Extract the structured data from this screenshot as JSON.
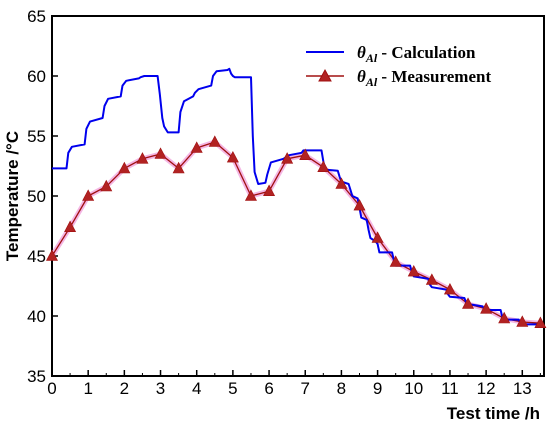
{
  "chart_data": {
    "type": "line",
    "xlabel": "Test time /h",
    "ylabel": "Temperature /°C",
    "xlim": [
      0,
      13.6
    ],
    "ylim": [
      35,
      65
    ],
    "xticks": [
      0,
      1,
      2,
      3,
      4,
      5,
      6,
      7,
      8,
      9,
      10,
      11,
      12,
      13
    ],
    "yticks": [
      35,
      40,
      45,
      50,
      55,
      60,
      65
    ],
    "grid": false,
    "legend_position": "top-right",
    "series": [
      {
        "name": "θ_Al - Calculation",
        "legend_symbol": "θ",
        "legend_subscript": "Al",
        "legend_suffix": " - Calculation",
        "color": "#0000ee",
        "marker": "none",
        "x": [
          0,
          0.4,
          0.45,
          0.55,
          0.9,
          0.95,
          1.05,
          1.4,
          1.45,
          1.55,
          1.9,
          1.95,
          2.05,
          2.4,
          2.45,
          2.55,
          2.92,
          2.98,
          3.05,
          3.1,
          3.2,
          3.5,
          3.55,
          3.65,
          3.9,
          3.95,
          4.05,
          4.4,
          4.45,
          4.55,
          4.85,
          4.9,
          4.95,
          5.0,
          5.05,
          5.5,
          5.55,
          5.6,
          5.7,
          5.9,
          5.95,
          6.05,
          6.4,
          6.45,
          6.55,
          6.9,
          6.95,
          7.0,
          7.45,
          7.5,
          7.55,
          7.9,
          7.95,
          8.0,
          8.2,
          8.25,
          8.3,
          8.45,
          8.5,
          8.55,
          8.7,
          8.75,
          8.8,
          8.95,
          9.0,
          9.05,
          9.4,
          9.45,
          9.5,
          9.9,
          9.95,
          10.0,
          10.4,
          10.45,
          10.5,
          10.9,
          10.95,
          11.0,
          11.4,
          11.45,
          11.5,
          11.9,
          11.95,
          12.0,
          12.4,
          12.45,
          12.5,
          12.9,
          12.95,
          13.0,
          13.4,
          13.45,
          13.5
        ],
        "y": [
          52.3,
          52.3,
          53.6,
          54.1,
          54.3,
          55.6,
          56.2,
          56.5,
          57.5,
          58.1,
          58.3,
          59.2,
          59.6,
          59.8,
          59.9,
          60.0,
          60.0,
          58.5,
          56.5,
          55.8,
          55.3,
          55.3,
          57.0,
          57.9,
          58.3,
          58.6,
          58.9,
          59.2,
          60.0,
          60.4,
          60.5,
          60.6,
          60.2,
          60.0,
          59.9,
          59.9,
          55.0,
          52.0,
          51.0,
          51.1,
          51.8,
          52.8,
          53.1,
          53.2,
          53.4,
          53.6,
          53.8,
          53.8,
          53.8,
          52.9,
          52.2,
          52.1,
          51.6,
          51.2,
          51.0,
          50.5,
          50.0,
          49.8,
          49.0,
          48.2,
          48.0,
          47.2,
          46.5,
          46.2,
          46.0,
          45.3,
          45.3,
          44.6,
          44.2,
          44.2,
          43.6,
          43.3,
          43.1,
          42.6,
          42.4,
          42.2,
          41.8,
          41.6,
          41.5,
          41.1,
          41.0,
          40.8,
          40.6,
          40.5,
          40.5,
          39.9,
          39.7,
          39.7,
          39.4,
          39.3,
          39.3,
          39.2,
          39.1
        ]
      },
      {
        "name": "θ_Al - Measurement",
        "legend_symbol": "θ",
        "legend_subscript": "Al",
        "legend_suffix": " - Measurement",
        "color": "#a01010",
        "marker": "triangle",
        "marker_color": "#b22222",
        "x": [
          0,
          0.5,
          1,
          1.5,
          2,
          2.5,
          3,
          3.5,
          4,
          4.5,
          5,
          5.5,
          6,
          6.5,
          7,
          7.5,
          8,
          8.5,
          9,
          9.5,
          10,
          10.5,
          11,
          11.5,
          12,
          12.5,
          13,
          13.5
        ],
        "y": [
          45.0,
          47.4,
          50.0,
          50.8,
          52.3,
          53.1,
          53.5,
          52.3,
          54.0,
          54.5,
          53.2,
          50.0,
          50.4,
          53.1,
          53.4,
          52.4,
          51.0,
          49.2,
          46.5,
          44.5,
          43.7,
          43.0,
          42.2,
          41.0,
          40.6,
          39.8,
          39.5,
          39.4
        ]
      }
    ]
  }
}
